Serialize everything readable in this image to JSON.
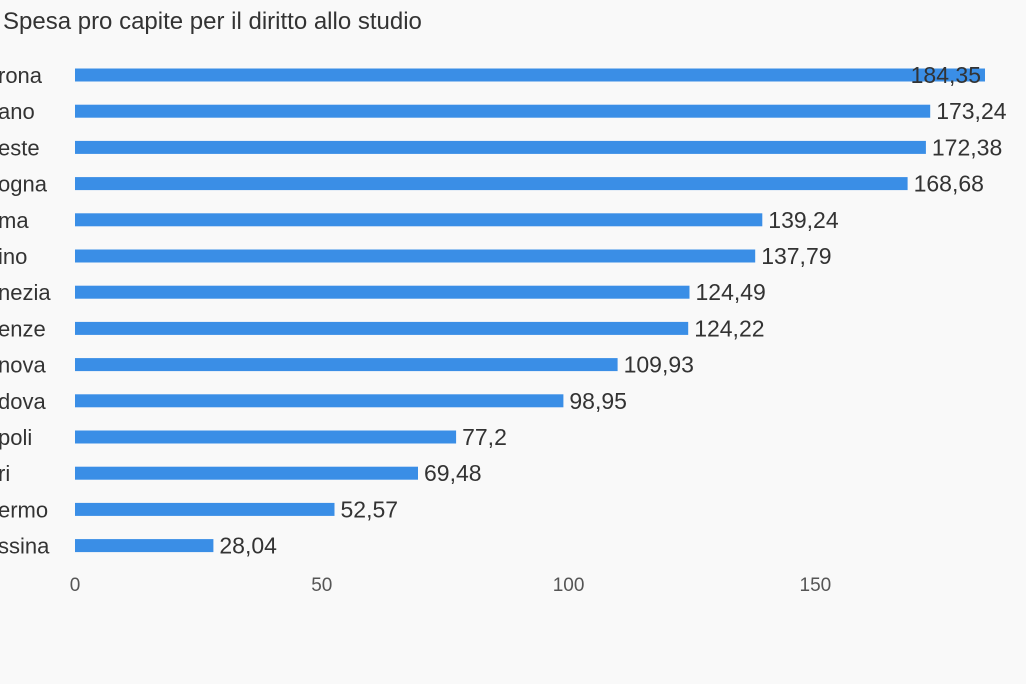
{
  "chart_data": {
    "type": "bar",
    "orientation": "horizontal",
    "title": "Spesa pro capite per il diritto allo studio",
    "categories": [
      "rona",
      "ano",
      "este",
      "ogna",
      "ma",
      "ino",
      "nezia",
      "enze",
      "nova",
      "dova",
      "poli",
      "ri",
      "ermo",
      "ssina"
    ],
    "values": [
      184.35,
      173.24,
      172.38,
      168.68,
      139.24,
      137.79,
      124.49,
      124.22,
      109.93,
      98.95,
      77.2,
      69.48,
      52.57,
      28.04
    ],
    "value_labels": [
      "184,35",
      "173,24",
      "172,38",
      "168,68",
      "139,24",
      "137,79",
      "124,49",
      "124,22",
      "109,93",
      "98,95",
      "77,2",
      "69,48",
      "52,57",
      "28,04"
    ],
    "xticks": [
      0,
      50,
      100,
      150
    ],
    "xlim": [
      0,
      184.35
    ],
    "xlabel": "",
    "ylabel": "",
    "grid": false,
    "legend": "none",
    "bar_color": "#3a8ee6"
  }
}
